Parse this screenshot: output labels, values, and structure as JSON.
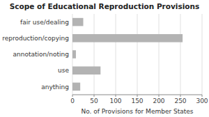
{
  "chart_data": {
    "type": "bar",
    "orientation": "horizontal",
    "title": "Scope of Educational Reproduction Provisions",
    "categories": [
      "fair use/dealing",
      "reproduction/copying",
      "annotation/noting",
      "use",
      "anything"
    ],
    "values": [
      25,
      255,
      8,
      65,
      18
    ],
    "color": "#b3b3b3",
    "xlabel": "No. of Provisions for Member States",
    "xlim": [
      0,
      300
    ],
    "xticks": [
      0,
      50,
      100,
      150,
      200,
      250,
      300
    ],
    "grid": true
  }
}
